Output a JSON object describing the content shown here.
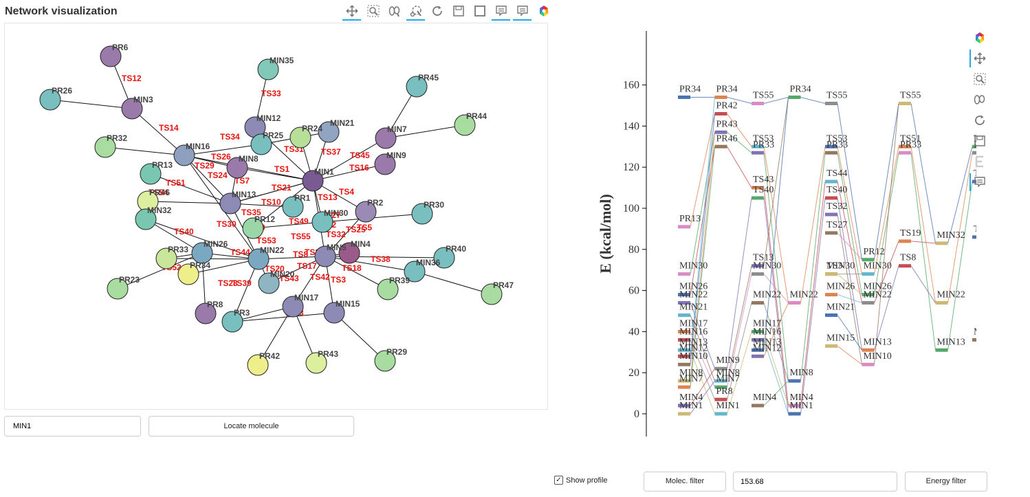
{
  "window": {
    "title": "Network visualization"
  },
  "toolbar": {
    "icons": [
      "pan-icon",
      "box-zoom-icon",
      "wheel-zoom-icon",
      "lasso-icon",
      "reset-icon",
      "save-icon",
      "box-select-icon",
      "hover-icon",
      "hover2-icon",
      "bokeh-logo-icon"
    ],
    "active": [
      "pan-icon",
      "lasso-icon",
      "hover-icon",
      "hover2-icon"
    ]
  },
  "network": {
    "nodes": [
      {
        "id": "PR6",
        "color": "#9a7aab"
      },
      {
        "id": "PR26",
        "color": "#79bfbf"
      },
      {
        "id": "MIN3",
        "color": "#9a7aab"
      },
      {
        "id": "MIN35",
        "color": "#80c8b8"
      },
      {
        "id": "PR45",
        "color": "#79bfbf"
      },
      {
        "id": "PR44",
        "color": "#a9dca0"
      },
      {
        "id": "MIN12",
        "color": "#8d8ab5"
      },
      {
        "id": "MIN21",
        "color": "#8fa5c2"
      },
      {
        "id": "PR24",
        "color": "#b7df97"
      },
      {
        "id": "PR25",
        "color": "#79bfbf"
      },
      {
        "id": "MIN7",
        "color": "#9a7aab"
      },
      {
        "id": "PR32",
        "color": "#a9dca0"
      },
      {
        "id": "MIN16",
        "color": "#8da0c0"
      },
      {
        "id": "MIN9",
        "color": "#9a7aab"
      },
      {
        "id": "MIN8",
        "color": "#9a7aab"
      },
      {
        "id": "PR13",
        "color": "#79c7b0"
      },
      {
        "id": "MIN1",
        "color": "#7a5a92"
      },
      {
        "id": "PR46",
        "color": "#dcef9e"
      },
      {
        "id": "MIN13",
        "color": "#8d8ab5"
      },
      {
        "id": "PR1",
        "color": "#79bfbf"
      },
      {
        "id": "PR2",
        "color": "#9a8ab5"
      },
      {
        "id": "PR30",
        "color": "#79bfbf"
      },
      {
        "id": "MIN32",
        "color": "#79c7b0"
      },
      {
        "id": "PR12",
        "color": "#9ad6a8"
      },
      {
        "id": "MIN30",
        "color": "#79bfbf"
      },
      {
        "id": "PR40",
        "color": "#79bfbf"
      },
      {
        "id": "MIN26",
        "color": "#7aa8c0"
      },
      {
        "id": "MIN22",
        "color": "#7aa8c0"
      },
      {
        "id": "MIN4",
        "color": "#9a5a8a"
      },
      {
        "id": "MIN5",
        "color": "#8d8ab5"
      },
      {
        "id": "PR33",
        "color": "#c9e69a"
      },
      {
        "id": "PR34",
        "color": "#eeee8a"
      },
      {
        "id": "MIN36",
        "color": "#79bfbf"
      },
      {
        "id": "PR23",
        "color": "#a9dca0"
      },
      {
        "id": "MIN20",
        "color": "#8fb5c2"
      },
      {
        "id": "PR39",
        "color": "#a9dca0"
      },
      {
        "id": "PR47",
        "color": "#a9dca0"
      },
      {
        "id": "MIN17",
        "color": "#8d8ab5"
      },
      {
        "id": "MIN15",
        "color": "#8d8ab5"
      },
      {
        "id": "PR8",
        "color": "#9a7aab"
      },
      {
        "id": "PR3",
        "color": "#79bfbf"
      },
      {
        "id": "PR42",
        "color": "#eeee8a"
      },
      {
        "id": "PR43",
        "color": "#dcef9e"
      },
      {
        "id": "PR29",
        "color": "#a9dca0"
      }
    ],
    "edges": [
      [
        "PR6",
        "MIN3"
      ],
      [
        "PR26",
        "MIN3"
      ],
      [
        "MIN3",
        "MIN16"
      ],
      [
        "MIN35",
        "MIN12"
      ],
      [
        "PR45",
        "MIN7"
      ],
      [
        "PR44",
        "MIN7"
      ],
      [
        "MIN7",
        "MIN1"
      ],
      [
        "MIN9",
        "MIN1"
      ],
      [
        "MIN21",
        "MIN1"
      ],
      [
        "MIN21",
        "PR25"
      ],
      [
        "PR24",
        "MIN1"
      ],
      [
        "MIN12",
        "MIN1"
      ],
      [
        "PR25",
        "MIN16"
      ],
      [
        "PR32",
        "MIN16"
      ],
      [
        "MIN16",
        "MIN1"
      ],
      [
        "MIN16",
        "MIN8"
      ],
      [
        "MIN16",
        "MIN13"
      ],
      [
        "MIN16",
        "MIN22"
      ],
      [
        "MIN8",
        "MIN1"
      ],
      [
        "MIN8",
        "MIN13"
      ],
      [
        "PR13",
        "MIN13"
      ],
      [
        "MIN13",
        "MIN1"
      ],
      [
        "MIN13",
        "PR1"
      ],
      [
        "MIN13",
        "MIN22"
      ],
      [
        "PR46",
        "MIN13"
      ],
      [
        "PR46",
        "MIN32"
      ],
      [
        "MIN32",
        "MIN26"
      ],
      [
        "MIN32",
        "MIN22"
      ],
      [
        "MIN1",
        "PR2"
      ],
      [
        "MIN1",
        "MIN5"
      ],
      [
        "MIN1",
        "MIN30"
      ],
      [
        "MIN1",
        "PR12"
      ],
      [
        "PR2",
        "MIN5"
      ],
      [
        "PR30",
        "MIN30"
      ],
      [
        "MIN30",
        "PR12"
      ],
      [
        "MIN5",
        "PR40"
      ],
      [
        "MIN5",
        "MIN36"
      ],
      [
        "MIN5",
        "MIN22"
      ],
      [
        "MIN5",
        "MIN4"
      ],
      [
        "MIN36",
        "PR47"
      ],
      [
        "MIN5",
        "PR39"
      ],
      [
        "MIN5",
        "MIN15"
      ],
      [
        "MIN5",
        "MIN20"
      ],
      [
        "MIN5",
        "MIN17"
      ],
      [
        "MIN22",
        "MIN26"
      ],
      [
        "MIN22",
        "PR33"
      ],
      [
        "MIN22",
        "PR34"
      ],
      [
        "MIN26",
        "PR23"
      ],
      [
        "MIN26",
        "PR8"
      ],
      [
        "MIN22",
        "MIN20"
      ],
      [
        "MIN22",
        "PR3"
      ],
      [
        "MIN17",
        "PR42"
      ],
      [
        "MIN17",
        "PR43"
      ],
      [
        "MIN17",
        "PR3"
      ],
      [
        "PR3",
        "MIN15"
      ],
      [
        "MIN15",
        "PR29"
      ],
      [
        "PR33",
        "MIN26"
      ],
      [
        "MIN1",
        "MIN13"
      ]
    ],
    "edge_labels": [
      "TS12",
      "TS33",
      "TS14",
      "TS34",
      "TS31",
      "TS37",
      "TS45",
      "TS26",
      "TS29",
      "TS24",
      "TS1",
      "TS16",
      "TS51",
      "TS7",
      "TS54",
      "TS21",
      "TS13",
      "TS4",
      "TS10",
      "TS35",
      "TS30",
      "TS19",
      "TS49",
      "TS2",
      "TS32",
      "TS25",
      "TS40",
      "TS53",
      "TS55",
      "TS44",
      "TS22",
      "TS8",
      "TS17",
      "TS38",
      "TS52",
      "TS20",
      "TS28",
      "TS39",
      "TS43",
      "TS42",
      "TS3",
      "TS23",
      "TS27",
      "TS18",
      "TS5"
    ]
  },
  "search": {
    "value": "MIN1",
    "button": "Locate molecule"
  },
  "controls": {
    "show_profile_label": "Show profile",
    "show_profile_checked": true,
    "molec_filter_button": "Molec. filter",
    "energy_value": "153.68",
    "energy_filter_button": "Energy filter"
  },
  "profile_toolbar": {
    "icons": [
      "bokeh-logo-icon",
      "pan-icon",
      "box-zoom-icon",
      "wheel-zoom-icon",
      "reset-icon",
      "save-icon",
      "text-e-icon",
      "hover-icon"
    ]
  },
  "chart_data": {
    "type": "line",
    "ylabel": "E (kcal/mol)",
    "ylim": [
      -10,
      165
    ],
    "yticks": [
      0,
      20,
      40,
      60,
      80,
      100,
      120,
      140,
      160
    ],
    "levels": [
      {
        "label": "PR34",
        "x": 0,
        "y": 154
      },
      {
        "label": "PR34",
        "x": 1,
        "y": 154
      },
      {
        "label": "PR34",
        "x": 3,
        "y": 154
      },
      {
        "label": "PR42",
        "x": 1,
        "y": 146
      },
      {
        "label": "PR43",
        "x": 1,
        "y": 137
      },
      {
        "label": "PR46",
        "x": 1,
        "y": 130
      },
      {
        "label": "TS55",
        "x": 2,
        "y": 151
      },
      {
        "label": "TS55",
        "x": 4,
        "y": 151
      },
      {
        "label": "TS55",
        "x": 6,
        "y": 151
      },
      {
        "label": "TS53",
        "x": 2,
        "y": 130
      },
      {
        "label": "TS53",
        "x": 4,
        "y": 130
      },
      {
        "label": "TS51",
        "x": 6,
        "y": 130
      },
      {
        "label": "TS51",
        "x": 8,
        "y": 130
      },
      {
        "label": "TS51",
        "x": 10,
        "y": 128
      },
      {
        "label": "PR33",
        "x": 2,
        "y": 127
      },
      {
        "label": "PR33",
        "x": 4,
        "y": 127
      },
      {
        "label": "PR33",
        "x": 6,
        "y": 127
      },
      {
        "label": "PR33",
        "x": 8,
        "y": 127
      },
      {
        "label": "TS54",
        "x": 10,
        "y": 142
      },
      {
        "label": "TS44",
        "x": 4,
        "y": 113
      },
      {
        "label": "TS44",
        "x": 8,
        "y": 113
      },
      {
        "label": "TS43",
        "x": 2,
        "y": 110
      },
      {
        "label": "TS40",
        "x": 2,
        "y": 105
      },
      {
        "label": "TS40",
        "x": 4,
        "y": 105
      },
      {
        "label": "TS32",
        "x": 4,
        "y": 97
      },
      {
        "label": "TS27",
        "x": 4,
        "y": 88
      },
      {
        "label": "PR13",
        "x": 0,
        "y": 91
      },
      {
        "label": "PR13",
        "x": 11,
        "y": 91
      },
      {
        "label": "MIN32",
        "x": 7,
        "y": 83
      },
      {
        "label": "MIN32",
        "x": 9,
        "y": 83
      },
      {
        "label": "TS22",
        "x": 8,
        "y": 86
      },
      {
        "label": "TS19",
        "x": 6,
        "y": 84
      },
      {
        "label": "PR12",
        "x": 5,
        "y": 75
      },
      {
        "label": "TS8",
        "x": 6,
        "y": 72
      },
      {
        "label": "TS13",
        "x": 2,
        "y": 72
      },
      {
        "label": "TS3",
        "x": 4,
        "y": 68
      },
      {
        "label": "MIN30",
        "x": 0,
        "y": 68
      },
      {
        "label": "MIN30",
        "x": 2,
        "y": 68
      },
      {
        "label": "MIN30",
        "x": 4,
        "y": 68
      },
      {
        "label": "MIN30",
        "x": 5,
        "y": 68
      },
      {
        "label": "MIN26",
        "x": 0,
        "y": 58
      },
      {
        "label": "MIN26",
        "x": 4,
        "y": 58
      },
      {
        "label": "MIN26",
        "x": 5,
        "y": 58
      },
      {
        "label": "MIN26",
        "x": 9,
        "y": 58
      },
      {
        "label": "MIN22",
        "x": 0,
        "y": 54
      },
      {
        "label": "MIN22",
        "x": 2,
        "y": 54
      },
      {
        "label": "MIN22",
        "x": 3,
        "y": 54
      },
      {
        "label": "MIN22",
        "x": 5,
        "y": 54
      },
      {
        "label": "MIN22",
        "x": 7,
        "y": 54
      },
      {
        "label": "MIN21",
        "x": 0,
        "y": 48
      },
      {
        "label": "MIN21",
        "x": 4,
        "y": 48
      },
      {
        "label": "MIN17",
        "x": 0,
        "y": 40
      },
      {
        "label": "MIN17",
        "x": 2,
        "y": 40
      },
      {
        "label": "MIN16",
        "x": 0,
        "y": 36
      },
      {
        "label": "MIN16",
        "x": 2,
        "y": 36
      },
      {
        "label": "MIN16",
        "x": 8,
        "y": 36
      },
      {
        "label": "MIN16",
        "x": 9,
        "y": 36
      },
      {
        "label": "MIN16",
        "x": 11,
        "y": 36
      },
      {
        "label": "MIN15",
        "x": 4,
        "y": 33
      },
      {
        "label": "MIN13",
        "x": 0,
        "y": 31
      },
      {
        "label": "MIN13",
        "x": 2,
        "y": 31
      },
      {
        "label": "MIN13",
        "x": 5,
        "y": 31
      },
      {
        "label": "MIN13",
        "x": 7,
        "y": 31
      },
      {
        "label": "MIN12",
        "x": 0,
        "y": 28
      },
      {
        "label": "MIN12",
        "x": 2,
        "y": 28
      },
      {
        "label": "MIN10",
        "x": 0,
        "y": 24
      },
      {
        "label": "MIN10",
        "x": 5,
        "y": 24
      },
      {
        "label": "MIN9",
        "x": 1,
        "y": 22
      },
      {
        "label": "MIN8",
        "x": 0,
        "y": 16
      },
      {
        "label": "MIN8",
        "x": 1,
        "y": 16
      },
      {
        "label": "MIN8",
        "x": 3,
        "y": 16
      },
      {
        "label": "MIN7",
        "x": 0,
        "y": 13
      },
      {
        "label": "MIN7",
        "x": 1,
        "y": 13
      },
      {
        "label": "PR8",
        "x": 1,
        "y": 7
      },
      {
        "label": "MIN4",
        "x": 0,
        "y": 4
      },
      {
        "label": "MIN4",
        "x": 2,
        "y": 4
      },
      {
        "label": "MIN4",
        "x": 3,
        "y": 4
      },
      {
        "label": "MIN4",
        "x": 9,
        "y": 4
      },
      {
        "label": "MIN1",
        "x": 0,
        "y": 0
      },
      {
        "label": "MIN1",
        "x": 1,
        "y": 0
      },
      {
        "label": "MIN1",
        "x": 3,
        "y": 0
      }
    ]
  }
}
